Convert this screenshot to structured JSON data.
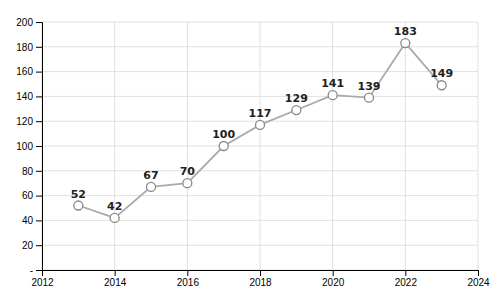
{
  "chart_data": {
    "type": "line",
    "x": [
      2013,
      2014,
      2015,
      2016,
      2017,
      2018,
      2019,
      2020,
      2021,
      2022,
      2023
    ],
    "values": [
      52,
      42,
      67,
      70,
      100,
      117,
      129,
      141,
      139,
      183,
      149
    ],
    "xlim": [
      2012,
      2024
    ],
    "ylim": [
      0,
      200
    ],
    "xticks": [
      2012,
      2014,
      2016,
      2018,
      2020,
      2022,
      2024
    ],
    "yticks": [
      {
        "value": 0,
        "label": "-"
      },
      20,
      40,
      60,
      80,
      100,
      120,
      140,
      160,
      180,
      200
    ],
    "color": "#aaaaaa",
    "marker": "circle",
    "data_labels": true,
    "grid": true
  }
}
